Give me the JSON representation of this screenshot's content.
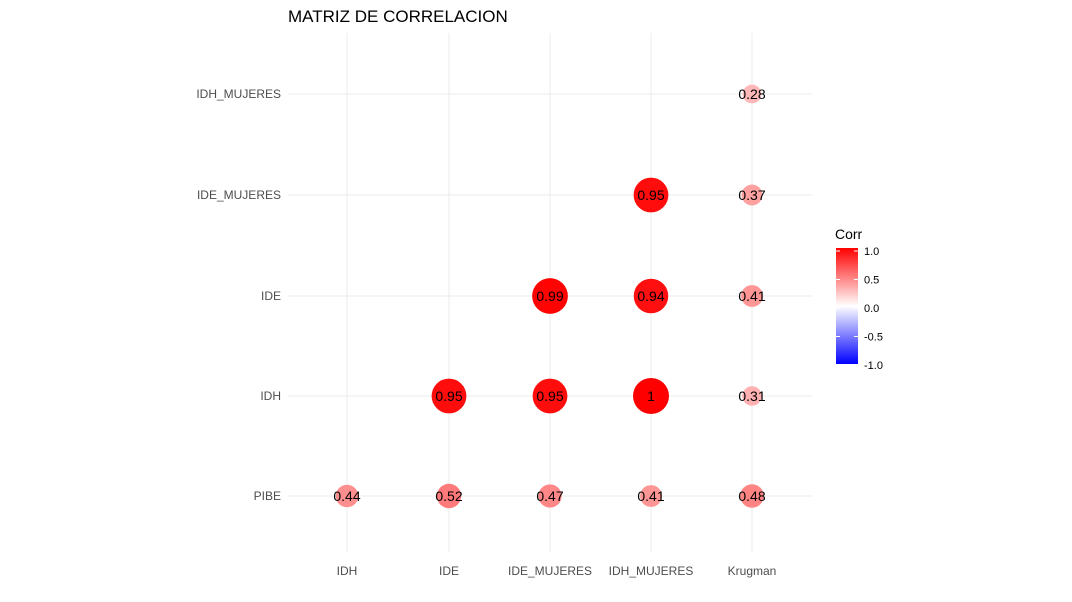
{
  "chart_data": {
    "type": "correlation-matrix",
    "title": "MATRIZ DE CORRELACION",
    "x_categories": [
      "IDH",
      "IDE",
      "IDE_MUJERES",
      "IDH_MUJERES",
      "Krugman"
    ],
    "y_categories": [
      "PIBE",
      "IDH",
      "IDE",
      "IDE_MUJERES",
      "IDH_MUJERES"
    ],
    "cells": [
      {
        "x": "IDH",
        "y": "PIBE",
        "value": 0.44,
        "label": "0.44"
      },
      {
        "x": "IDE",
        "y": "PIBE",
        "value": 0.52,
        "label": "0.52"
      },
      {
        "x": "IDE_MUJERES",
        "y": "PIBE",
        "value": 0.47,
        "label": "0.47"
      },
      {
        "x": "IDH_MUJERES",
        "y": "PIBE",
        "value": 0.41,
        "label": "0.41"
      },
      {
        "x": "Krugman",
        "y": "PIBE",
        "value": 0.48,
        "label": "0.48"
      },
      {
        "x": "IDE",
        "y": "IDH",
        "value": 0.95,
        "label": "0.95"
      },
      {
        "x": "IDE_MUJERES",
        "y": "IDH",
        "value": 0.95,
        "label": "0.95"
      },
      {
        "x": "IDH_MUJERES",
        "y": "IDH",
        "value": 1.0,
        "label": "1"
      },
      {
        "x": "Krugman",
        "y": "IDH",
        "value": 0.31,
        "label": "0.31"
      },
      {
        "x": "IDE_MUJERES",
        "y": "IDE",
        "value": 0.99,
        "label": "0.99"
      },
      {
        "x": "IDH_MUJERES",
        "y": "IDE",
        "value": 0.94,
        "label": "0.94"
      },
      {
        "x": "Krugman",
        "y": "IDE",
        "value": 0.41,
        "label": "0.41"
      },
      {
        "x": "IDH_MUJERES",
        "y": "IDE_MUJERES",
        "value": 0.95,
        "label": "0.95"
      },
      {
        "x": "Krugman",
        "y": "IDE_MUJERES",
        "value": 0.37,
        "label": "0.37"
      },
      {
        "x": "Krugman",
        "y": "IDH_MUJERES",
        "value": 0.28,
        "label": "0.28"
      }
    ],
    "legend": {
      "title": "Corr",
      "ticks": [
        "1.0",
        "0.5",
        "0.0",
        "-0.5",
        "-1.0"
      ],
      "range": [
        -1,
        1
      ],
      "position": "right"
    },
    "colors": {
      "low": "#0000ff",
      "mid": "#ffffff",
      "high": "#ff0000"
    },
    "grid": true
  }
}
